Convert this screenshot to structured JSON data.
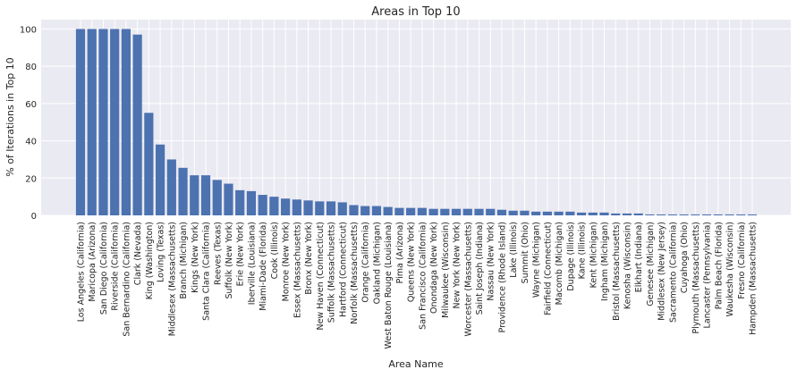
{
  "chart_data": {
    "type": "bar",
    "title": "Areas in Top 10",
    "xlabel": "Area Name",
    "ylabel": "% of Iterations in Top 10",
    "ylim": [
      0,
      105
    ],
    "yticks": [
      0,
      20,
      40,
      60,
      80,
      100
    ],
    "grid": true,
    "bar_color": "#4c72b0",
    "background_color": "#eaeaf2",
    "grid_color": "#ffffff",
    "categories": [
      "Los Angeles (California)",
      "Maricopa (Arizona)",
      "San Diego (California)",
      "Riverside (California)",
      "San Bernardino (California)",
      "Clark (Nevada)",
      "King (Washington)",
      "Loving (Texas)",
      "Middlesex (Massachusetts)",
      "Branch (Michigan)",
      "Kings (New York)",
      "Santa Clara (California)",
      "Reeves (Texas)",
      "Suffolk (New York)",
      "Erie (New York)",
      "Iberville (Louisiana)",
      "Miami-Dade (Florida)",
      "Cook (Illinois)",
      "Monroe (New York)",
      "Essex (Massachusetts)",
      "Bronx (New York)",
      "New Haven (Connecticut)",
      "Suffolk (Massachusetts)",
      "Hartford (Connecticut)",
      "Norfolk (Massachusetts)",
      "Orange (California)",
      "Oakland (Michigan)",
      "West Baton Rouge (Louisiana)",
      "Pima (Arizona)",
      "Queens (New York)",
      "San Francisco (California)",
      "Onondaga (New York)",
      "Milwaukee (Wisconsin)",
      "New York (New York)",
      "Worcester (Massachusetts)",
      "Saint Joseph (Indiana)",
      "Nassau (New York)",
      "Providence (Rhode Island)",
      "Lake (Illinois)",
      "Summit (Ohio)",
      "Wayne (Michigan)",
      "Fairfield (Connecticut)",
      "Macomb (Michigan)",
      "Dupage (Illinois)",
      "Kane (Illinois)",
      "Kent (Michigan)",
      "Ingham (Michigan)",
      "Bristol (Massachusetts)",
      "Kenosha (Wisconsin)",
      "Elkhart (Indiana)",
      "Genesee (Michigan)",
      "Middlesex (New Jersey)",
      "Sacramento (California)",
      "Cuyahoga (Ohio)",
      "Plymouth (Massachusetts)",
      "Lancaster (Pennsylvania)",
      "Palm Beach (Florida)",
      "Waukesha (Wisconsin)",
      "Fresno (California)",
      "Hampden (Massachusetts)"
    ],
    "values": [
      100,
      100,
      100,
      100,
      100,
      97,
      55,
      38,
      30,
      25.5,
      21.5,
      21.5,
      19,
      17,
      13.5,
      13,
      11,
      10,
      9,
      8.5,
      8,
      7.5,
      7.5,
      7,
      5.5,
      5,
      5,
      4.5,
      4,
      4,
      4,
      3.5,
      3.5,
      3.5,
      3.5,
      3.5,
      3.5,
      3,
      2.5,
      2.5,
      2,
      2,
      2,
      2,
      1.5,
      1.5,
      1.5,
      1,
      1,
      1,
      0.5,
      0.5,
      0.5,
      0.5,
      0.5,
      0.5,
      0.5,
      0.5,
      0.5,
      0.5
    ]
  }
}
